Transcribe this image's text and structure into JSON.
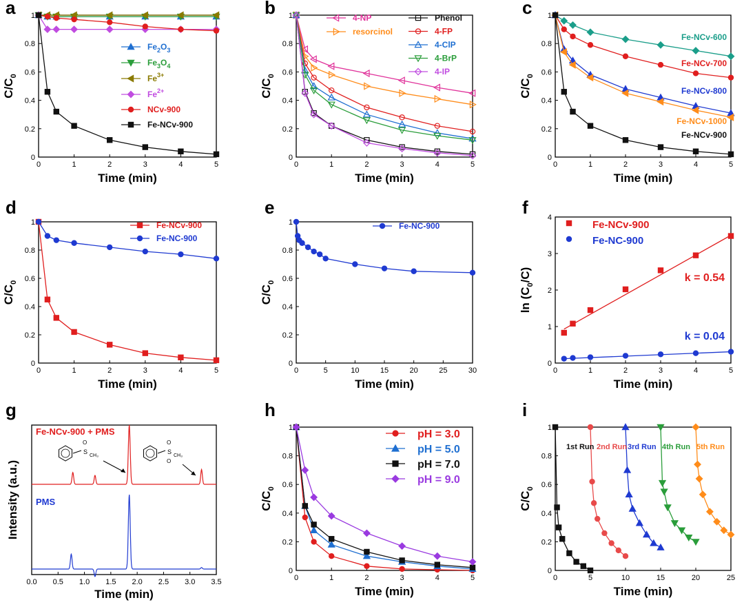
{
  "chart_data": [
    {
      "panel": "a",
      "type": "line",
      "xlabel": "Time (min)",
      "ylabel": "C/C0",
      "xlim": [
        0,
        5
      ],
      "ylim": [
        0,
        1
      ],
      "xticks": [
        0,
        1,
        2,
        3,
        4,
        5
      ],
      "yticks": [
        0,
        0.2,
        0.4,
        0.6,
        0.8,
        1.0
      ],
      "legend": "center-right",
      "series": [
        {
          "name": "Fe2O3",
          "sub": "2",
          "sub2": "3",
          "color": "#1f6fd1",
          "marker": "triangle-up",
          "x": [
            0,
            0.25,
            0.5,
            1,
            2,
            3,
            4,
            5
          ],
          "y": [
            1,
            0.99,
            0.99,
            0.99,
            0.99,
            0.99,
            0.99,
            0.99
          ]
        },
        {
          "name": "Fe3O4",
          "color": "#2a9d3a",
          "marker": "triangle-down",
          "x": [
            0,
            0.25,
            0.5,
            1,
            2,
            3,
            4,
            5
          ],
          "y": [
            1,
            0.99,
            0.99,
            0.99,
            0.99,
            0.99,
            0.99,
            0.99
          ]
        },
        {
          "name": "Fe3+",
          "color": "#8a7a00",
          "marker": "triangle-left",
          "x": [
            0,
            0.25,
            0.5,
            1,
            2,
            3,
            4,
            5
          ],
          "y": [
            1,
            1,
            1,
            1,
            1,
            1,
            1,
            1
          ]
        },
        {
          "name": "Fe2+",
          "color": "#c04ce0",
          "marker": "diamond",
          "x": [
            0,
            0.25,
            0.5,
            1,
            2,
            3,
            4,
            5
          ],
          "y": [
            1,
            0.9,
            0.9,
            0.9,
            0.9,
            0.9,
            0.9,
            0.9
          ]
        },
        {
          "name": "NCv-900",
          "color": "#e01e1e",
          "marker": "circle",
          "x": [
            0,
            0.25,
            0.5,
            1,
            2,
            3,
            4,
            5
          ],
          "y": [
            1,
            0.99,
            0.98,
            0.97,
            0.95,
            0.92,
            0.9,
            0.89
          ]
        },
        {
          "name": "Fe-NCv-900",
          "color": "#111111",
          "marker": "square",
          "x": [
            0,
            0.25,
            0.5,
            1,
            2,
            3,
            4,
            5
          ],
          "y": [
            1,
            0.46,
            0.32,
            0.22,
            0.12,
            0.07,
            0.04,
            0.02
          ]
        }
      ]
    },
    {
      "panel": "b",
      "type": "line",
      "xlabel": "Time (min)",
      "ylabel": "C/C0",
      "xlim": [
        0,
        5
      ],
      "ylim": [
        0,
        1
      ],
      "xticks": [
        0,
        1,
        2,
        3,
        4,
        5
      ],
      "yticks": [
        0,
        0.2,
        0.4,
        0.6,
        0.8,
        1.0
      ],
      "legend": "top-right",
      "series": [
        {
          "name": "4-NP",
          "color": "#e0329a",
          "marker": "triangle-left",
          "open": true,
          "x": [
            0,
            0.25,
            0.5,
            1,
            2,
            3,
            4,
            5
          ],
          "y": [
            1,
            0.76,
            0.69,
            0.64,
            0.59,
            0.54,
            0.49,
            0.45
          ]
        },
        {
          "name": "resorcinol",
          "color": "#ff8c1a",
          "marker": "triangle-right",
          "open": true,
          "x": [
            0,
            0.25,
            0.5,
            1,
            2,
            3,
            4,
            5
          ],
          "y": [
            1,
            0.71,
            0.63,
            0.58,
            0.5,
            0.45,
            0.41,
            0.37
          ]
        },
        {
          "name": "Phenol",
          "color": "#111111",
          "marker": "square",
          "open": true,
          "x": [
            0,
            0.25,
            0.5,
            1,
            2,
            3,
            4,
            5
          ],
          "y": [
            1,
            0.46,
            0.31,
            0.22,
            0.12,
            0.07,
            0.04,
            0.02
          ]
        },
        {
          "name": "4-FP",
          "color": "#e01e1e",
          "marker": "circle",
          "open": true,
          "x": [
            0,
            0.25,
            0.5,
            1,
            2,
            3,
            4,
            5
          ],
          "y": [
            1,
            0.66,
            0.56,
            0.47,
            0.35,
            0.28,
            0.22,
            0.18
          ]
        },
        {
          "name": "4-ClP",
          "color": "#1f6fd1",
          "marker": "triangle-up",
          "open": true,
          "x": [
            0,
            0.25,
            0.5,
            1,
            2,
            3,
            4,
            5
          ],
          "y": [
            1,
            0.61,
            0.5,
            0.42,
            0.3,
            0.23,
            0.17,
            0.13
          ]
        },
        {
          "name": "4-BrP",
          "color": "#2a9d3a",
          "marker": "triangle-down",
          "open": true,
          "x": [
            0,
            0.25,
            0.5,
            1,
            2,
            3,
            4,
            5
          ],
          "y": [
            1,
            0.58,
            0.47,
            0.37,
            0.26,
            0.19,
            0.15,
            0.12
          ]
        },
        {
          "name": "4-IP",
          "color": "#c04ce0",
          "marker": "diamond",
          "open": true,
          "x": [
            0,
            0.25,
            0.5,
            1,
            2,
            3,
            4,
            5
          ],
          "y": [
            1,
            0.45,
            0.3,
            0.22,
            0.1,
            0.06,
            0.03,
            0.01
          ]
        }
      ]
    },
    {
      "panel": "c",
      "type": "line",
      "xlabel": "Time (min)",
      "ylabel": "C/C0",
      "xlim": [
        0,
        5
      ],
      "ylim": [
        0,
        1
      ],
      "xticks": [
        0,
        1,
        2,
        3,
        4,
        5
      ],
      "yticks": [
        0,
        0.2,
        0.4,
        0.6,
        0.8,
        1.0
      ],
      "legend": "inline",
      "series": [
        {
          "name": "Fe-NCv-600",
          "color": "#1b9e8a",
          "marker": "diamond",
          "x": [
            0,
            0.25,
            0.5,
            1,
            2,
            3,
            4,
            5
          ],
          "y": [
            1,
            0.96,
            0.93,
            0.88,
            0.83,
            0.79,
            0.75,
            0.71
          ]
        },
        {
          "name": "Fe-NCv-700",
          "color": "#e01e1e",
          "marker": "circle",
          "x": [
            0,
            0.25,
            0.5,
            1,
            2,
            3,
            4,
            5
          ],
          "y": [
            1,
            0.9,
            0.85,
            0.79,
            0.71,
            0.65,
            0.59,
            0.56
          ]
        },
        {
          "name": "Fe-NCv-800",
          "color": "#1f3ad1",
          "marker": "triangle-up",
          "x": [
            0,
            0.25,
            0.5,
            1,
            2,
            3,
            4,
            5
          ],
          "y": [
            1,
            0.76,
            0.68,
            0.58,
            0.48,
            0.42,
            0.36,
            0.31
          ]
        },
        {
          "name": "Fe-NCv-1000",
          "color": "#ff8c1a",
          "marker": "triangle-left",
          "x": [
            0,
            0.25,
            0.5,
            1,
            2,
            3,
            4,
            5
          ],
          "y": [
            1,
            0.74,
            0.65,
            0.56,
            0.45,
            0.39,
            0.33,
            0.28
          ]
        },
        {
          "name": "Fe-NCv-900",
          "color": "#111111",
          "marker": "square",
          "x": [
            0,
            0.25,
            0.5,
            1,
            2,
            3,
            4,
            5
          ],
          "y": [
            1,
            0.46,
            0.32,
            0.22,
            0.12,
            0.07,
            0.04,
            0.02
          ]
        }
      ]
    },
    {
      "panel": "d",
      "type": "line",
      "xlabel": "Time (min)",
      "ylabel": "C/C0",
      "xlim": [
        0,
        5
      ],
      "ylim": [
        0,
        1
      ],
      "xticks": [
        0,
        1,
        2,
        3,
        4,
        5
      ],
      "yticks": [
        0,
        0.2,
        0.4,
        0.6,
        0.8,
        1.0
      ],
      "legend": "top-right",
      "series": [
        {
          "name": "Fe-NCv-900",
          "color": "#e01e1e",
          "marker": "square",
          "x": [
            0,
            0.25,
            0.5,
            1,
            2,
            3,
            4,
            5
          ],
          "y": [
            1,
            0.45,
            0.32,
            0.22,
            0.13,
            0.07,
            0.04,
            0.02
          ]
        },
        {
          "name": "Fe-NC-900",
          "color": "#1f3ad1",
          "marker": "circle",
          "x": [
            0,
            0.25,
            0.5,
            1,
            2,
            3,
            4,
            5
          ],
          "y": [
            1,
            0.9,
            0.87,
            0.85,
            0.82,
            0.79,
            0.77,
            0.74
          ]
        }
      ]
    },
    {
      "panel": "e",
      "type": "line",
      "xlabel": "Time (min)",
      "ylabel": "C/C0",
      "xlim": [
        0,
        30
      ],
      "ylim": [
        0,
        1
      ],
      "xticks": [
        0,
        5,
        10,
        15,
        20,
        25,
        30
      ],
      "yticks": [
        0,
        0.2,
        0.4,
        0.6,
        0.8,
        1.0
      ],
      "legend": "top-right",
      "series": [
        {
          "name": "Fe-NC-900",
          "color": "#1f3ad1",
          "marker": "circle",
          "x": [
            0,
            0.25,
            0.5,
            1,
            2,
            3,
            4,
            5,
            10,
            15,
            20,
            30
          ],
          "y": [
            1,
            0.9,
            0.87,
            0.85,
            0.82,
            0.79,
            0.77,
            0.74,
            0.7,
            0.67,
            0.65,
            0.64
          ]
        }
      ]
    },
    {
      "panel": "f",
      "type": "scatter",
      "xlabel": "Time (min)",
      "ylabel": "ln (C0/C)",
      "xlim": [
        0,
        5
      ],
      "ylim": [
        0,
        4
      ],
      "xticks": [
        0,
        1,
        2,
        3,
        4,
        5
      ],
      "yticks": [
        0,
        1,
        2,
        3,
        4
      ],
      "legend": "top-left",
      "series": [
        {
          "name": "Fe-NCv-900",
          "color": "#e01e1e",
          "marker": "square",
          "k_label": "k = 0.54",
          "fit": [
            0.25,
            0.93,
            5,
            3.5
          ],
          "x": [
            0.25,
            0.5,
            1,
            2,
            3,
            4,
            5
          ],
          "y": [
            0.83,
            1.08,
            1.45,
            2.02,
            2.54,
            2.95,
            3.48
          ]
        },
        {
          "name": "Fe-NC-900",
          "color": "#1f3ad1",
          "marker": "circle",
          "k_label": "k = 0.04",
          "fit": [
            0.25,
            0.12,
            5,
            0.31
          ],
          "x": [
            0.25,
            0.5,
            1,
            2,
            3,
            4,
            5
          ],
          "y": [
            0.12,
            0.14,
            0.16,
            0.2,
            0.24,
            0.27,
            0.31
          ]
        }
      ]
    },
    {
      "panel": "g",
      "type": "line",
      "xlabel": "Time (min)",
      "ylabel": "Intensity (a.u.)",
      "xlim": [
        0,
        3.5
      ],
      "xticks": [
        0,
        0.5,
        1.0,
        1.5,
        2.0,
        2.5,
        3.0,
        3.5
      ],
      "series": [
        {
          "name": "Fe-NCv-900 + PMS",
          "color": "#e01e1e",
          "peaks": [
            [
              0.78,
              0.2
            ],
            [
              1.2,
              0.15
            ],
            [
              1.85,
              1.0
            ],
            [
              3.22,
              0.25
            ]
          ],
          "label_pos": "top-left"
        },
        {
          "name": "PMS",
          "color": "#1f3ad1",
          "peaks": [
            [
              0.75,
              0.2
            ],
            [
              1.2,
              -0.1
            ],
            [
              1.85,
              1.0
            ],
            [
              3.22,
              0.02
            ]
          ],
          "label_pos": "left"
        }
      ]
    },
    {
      "panel": "h",
      "type": "line",
      "xlabel": "Time (min)",
      "ylabel": "C/C0",
      "xlim": [
        0,
        5
      ],
      "ylim": [
        0,
        1
      ],
      "xticks": [
        0,
        1,
        2,
        3,
        4,
        5
      ],
      "yticks": [
        0,
        0.2,
        0.4,
        0.6,
        0.8,
        1.0
      ],
      "legend": "top-right",
      "series": [
        {
          "name": "pH = 3.0",
          "color": "#e01e1e",
          "marker": "circle",
          "x": [
            0,
            0.25,
            0.5,
            1,
            2,
            3,
            4,
            5
          ],
          "y": [
            1,
            0.37,
            0.2,
            0.1,
            0.03,
            0.01,
            0.005,
            0.0
          ]
        },
        {
          "name": "pH = 5.0",
          "color": "#1f6fd1",
          "marker": "triangle-up",
          "x": [
            0,
            0.25,
            0.5,
            1,
            2,
            3,
            4,
            5
          ],
          "y": [
            1,
            0.45,
            0.28,
            0.18,
            0.1,
            0.06,
            0.03,
            0.01
          ]
        },
        {
          "name": "pH = 7.0",
          "color": "#111111",
          "marker": "square",
          "x": [
            0,
            0.25,
            0.5,
            1,
            2,
            3,
            4,
            5
          ],
          "y": [
            1,
            0.45,
            0.32,
            0.22,
            0.13,
            0.07,
            0.04,
            0.02
          ]
        },
        {
          "name": "pH = 9.0",
          "color": "#9a3ae0",
          "marker": "diamond",
          "x": [
            0,
            0.25,
            0.5,
            1,
            2,
            3,
            4,
            5
          ],
          "y": [
            1,
            0.7,
            0.51,
            0.38,
            0.26,
            0.17,
            0.1,
            0.06
          ]
        }
      ]
    },
    {
      "panel": "i",
      "type": "line",
      "xlabel": "Time (min)",
      "ylabel": "C/C0",
      "xlim": [
        0,
        25
      ],
      "ylim": [
        0,
        1
      ],
      "xticks": [
        0,
        5,
        10,
        15,
        20,
        25
      ],
      "yticks": [
        0,
        0.2,
        0.4,
        0.6,
        0.8,
        1.0
      ],
      "legend": "inline-top",
      "series": [
        {
          "name": "1st Run",
          "color": "#111111",
          "marker": "square",
          "x": [
            0,
            0.25,
            0.5,
            1,
            2,
            3,
            4,
            5
          ],
          "y": [
            1,
            0.44,
            0.3,
            0.22,
            0.12,
            0.06,
            0.03,
            0.0
          ]
        },
        {
          "name": "2nd Run",
          "color": "#e84a4a",
          "marker": "circle",
          "x": [
            5,
            5.25,
            5.5,
            6,
            7,
            8,
            9,
            10
          ],
          "y": [
            1,
            0.62,
            0.47,
            0.36,
            0.26,
            0.19,
            0.14,
            0.1
          ]
        },
        {
          "name": "3rd Run",
          "color": "#1f3ad1",
          "marker": "triangle-up",
          "x": [
            10,
            10.25,
            10.5,
            11,
            12,
            13,
            14,
            15
          ],
          "y": [
            1,
            0.7,
            0.53,
            0.43,
            0.33,
            0.25,
            0.19,
            0.16
          ]
        },
        {
          "name": "4th Run",
          "color": "#2a9d3a",
          "marker": "triangle-down",
          "x": [
            15,
            15.25,
            15.5,
            16,
            17,
            18,
            19,
            20
          ],
          "y": [
            1,
            0.61,
            0.55,
            0.44,
            0.33,
            0.28,
            0.23,
            0.2
          ]
        },
        {
          "name": "5th Run",
          "color": "#ff8c1a",
          "marker": "diamond",
          "x": [
            20,
            20.25,
            20.5,
            21,
            22,
            23,
            24,
            25
          ],
          "y": [
            1,
            0.74,
            0.64,
            0.53,
            0.41,
            0.34,
            0.28,
            0.25
          ]
        }
      ]
    }
  ]
}
